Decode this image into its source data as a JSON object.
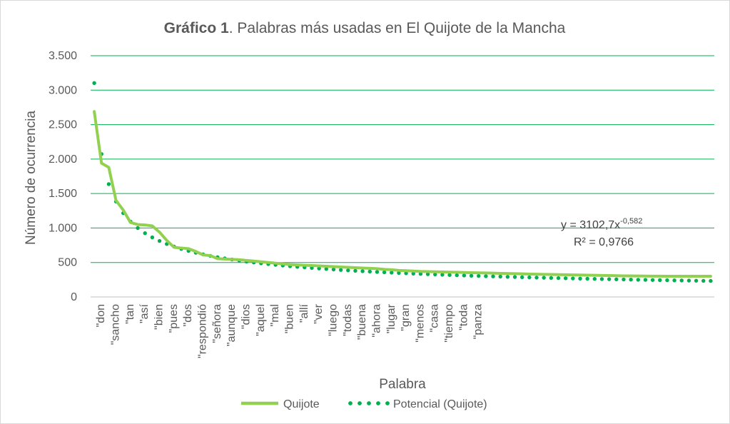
{
  "chart_data": {
    "type": "line",
    "title_bold": "Gráfico 1",
    "title_rest": ". Palabras más usadas en El Quijote de la Mancha",
    "xlabel": "Palabra",
    "ylabel": "Número de ocurrencia",
    "ylim": [
      0,
      3500
    ],
    "ytick_values": [
      0,
      500,
      1000,
      1500,
      2000,
      2500,
      3000,
      3500
    ],
    "ytick_labels": [
      "0",
      "500",
      "1.000",
      "1.500",
      "2.000",
      "2.500",
      "3.000",
      "3.500"
    ],
    "xtick_labels": [
      "\"don",
      "\"sancho",
      "\"tan",
      "\"así",
      "\"bien",
      "\"pues",
      "\"dos",
      "\"respondió",
      "\"señora",
      "\"aunque",
      "\"dios",
      "\"aquel",
      "\"mal",
      "\"buen",
      "\"allí",
      "\"ver",
      "\"luego",
      "\"todas",
      "\"buena",
      "\"ahora",
      "\"lugar",
      "\"gran",
      "\"menos",
      "\"casa",
      "\"tiempo",
      "\"toda",
      "\"panza"
    ],
    "xtick_every": 2,
    "grid": true,
    "legend_position": "bottom",
    "series": [
      {
        "name": "Quijote",
        "style": "solid",
        "color": "#92d050",
        "values": [
          2690,
          1940,
          1880,
          1400,
          1260,
          1080,
          1050,
          1045,
          1030,
          940,
          820,
          720,
          710,
          700,
          660,
          610,
          600,
          555,
          550,
          545,
          540,
          530,
          520,
          510,
          500,
          490,
          480,
          470,
          465,
          460,
          455,
          450,
          445,
          440,
          435,
          430,
          425,
          420,
          415,
          410,
          400,
          395,
          385,
          380,
          375,
          370,
          368,
          365,
          362,
          360,
          358,
          355,
          352,
          350,
          348,
          345,
          342,
          340,
          338,
          335,
          332,
          330,
          328,
          326,
          324,
          322,
          320,
          318,
          316,
          315,
          312,
          310,
          308,
          306,
          305,
          304,
          303,
          302,
          301,
          300,
          300,
          300,
          300,
          300,
          300,
          300
        ]
      },
      {
        "name": "Potencial (Quijote)",
        "style": "dotted",
        "color": "#00b050",
        "model": {
          "a": 3102.7,
          "b": -0.582,
          "count": 86
        }
      }
    ],
    "trendline_label": {
      "equation_base": "y = 3102,7x",
      "equation_exponent": "-0,582",
      "r_squared": "R² = 0,9766"
    }
  },
  "colors": {
    "grid": "#00b050",
    "axis": "#bfbfbf",
    "text": "#595959"
  }
}
